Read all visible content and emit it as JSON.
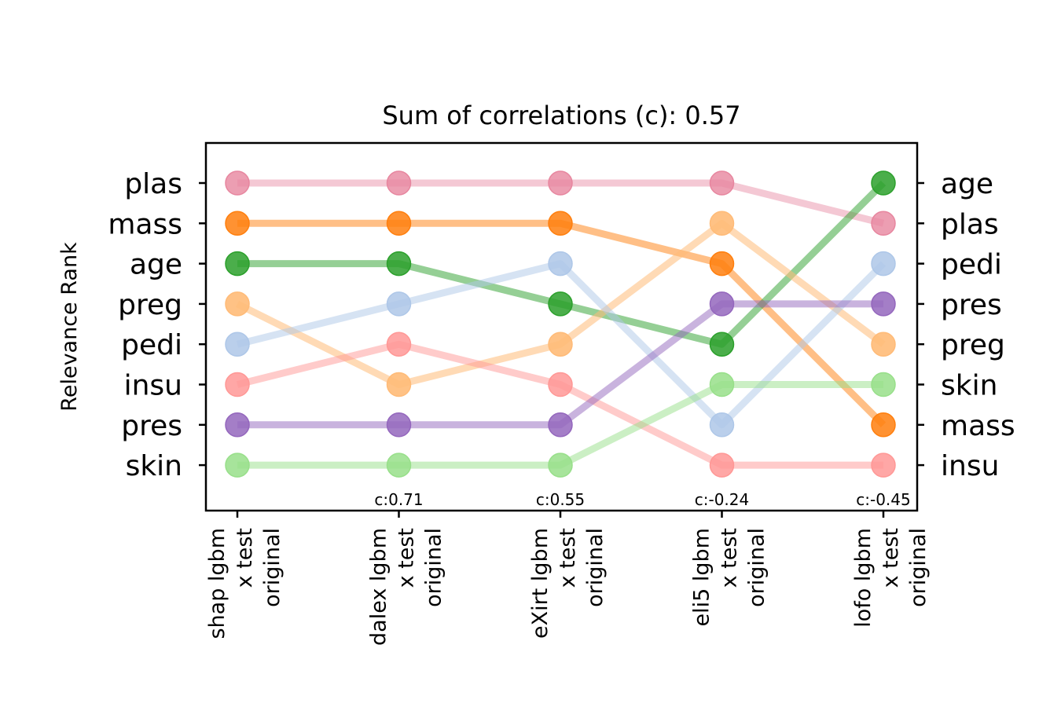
{
  "chart_data": {
    "type": "line",
    "title": "Sum of correlations (c): 0.57",
    "ylabel": "Relevance Rank",
    "x": [
      "shap lgbm\nx test\noriginal",
      "dalex lgbm\nx test\noriginal",
      "eXirt lgbm\nx test\noriginal",
      "eli5 lgbm\nx test\noriginal",
      "lofo lgbm\nx test\noriginal"
    ],
    "correlations": [
      "",
      "c:0.71",
      "c:0.55",
      "c:-0.24",
      "c:-0.45"
    ],
    "left_rank_labels": [
      "plas",
      "mass",
      "age",
      "preg",
      "pedi",
      "insu",
      "pres",
      "skin"
    ],
    "right_rank_labels": [
      "age",
      "plas",
      "pedi",
      "pres",
      "preg",
      "skin",
      "mass",
      "insu"
    ],
    "series": [
      {
        "name": "plas",
        "color": "#e7869f",
        "alpha": 0.45,
        "values": [
          1,
          1,
          1,
          1,
          2
        ]
      },
      {
        "name": "mass",
        "color": "#ff7f0e",
        "alpha": 0.5,
        "values": [
          2,
          2,
          2,
          3,
          7
        ]
      },
      {
        "name": "age",
        "color": "#2ca02c",
        "alpha": 0.5,
        "values": [
          3,
          3,
          4,
          5,
          1
        ]
      },
      {
        "name": "preg",
        "color": "#ffbb78",
        "alpha": 0.55,
        "values": [
          4,
          6,
          5,
          2,
          5
        ]
      },
      {
        "name": "pedi",
        "color": "#aec7e8",
        "alpha": 0.5,
        "values": [
          5,
          4,
          3,
          7,
          3
        ]
      },
      {
        "name": "insu",
        "color": "#ff9896",
        "alpha": 0.5,
        "values": [
          6,
          5,
          6,
          8,
          8
        ]
      },
      {
        "name": "pres",
        "color": "#9467bd",
        "alpha": 0.5,
        "values": [
          7,
          7,
          7,
          4,
          4
        ]
      },
      {
        "name": "skin",
        "color": "#98df8a",
        "alpha": 0.5,
        "values": [
          8,
          8,
          8,
          6,
          6
        ]
      }
    ],
    "ylim": [
      8.8,
      0.2
    ],
    "grid": false,
    "legend": "none"
  }
}
